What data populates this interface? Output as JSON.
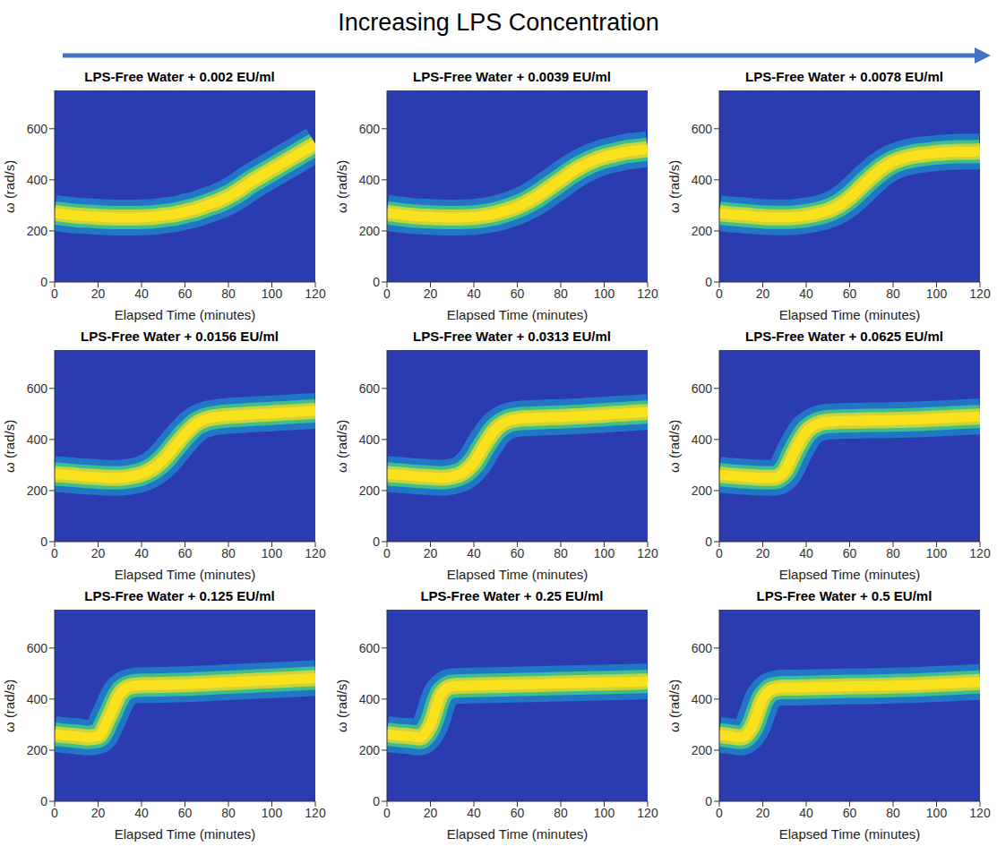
{
  "title": "Increasing LPS Concentration",
  "chart_data": [
    {
      "type": "line",
      "title": "LPS-Free Water + 0.002 EU/ml",
      "x_label": "Elapsed Time (minutes)",
      "y_label": "ω (rad/s)",
      "color": "#f9e11e",
      "x": [
        0,
        5,
        10,
        15,
        20,
        25,
        30,
        35,
        40,
        45,
        50,
        55,
        60,
        65,
        70,
        75,
        80,
        85,
        90,
        95,
        100,
        105,
        110,
        115,
        120
      ],
      "values": [
        270,
        265,
        260,
        258,
        255,
        253,
        252,
        252,
        253,
        255,
        260,
        265,
        275,
        285,
        300,
        315,
        335,
        360,
        390,
        415,
        440,
        465,
        490,
        515,
        540
      ],
      "xlim": [
        0,
        120
      ],
      "xticks": [
        0,
        20,
        40,
        60,
        80,
        100,
        120
      ],
      "ylim": [
        0,
        750
      ],
      "yticks": [
        0,
        200,
        400,
        600
      ]
    },
    {
      "type": "line",
      "title": "LPS-Free Water + 0.0039 EU/ml",
      "x_label": "Elapsed Time (minutes)",
      "y_label": "ω (rad/s)",
      "color": "#f9e11e",
      "x": [
        0,
        5,
        10,
        15,
        20,
        25,
        30,
        35,
        40,
        45,
        50,
        55,
        60,
        65,
        70,
        75,
        80,
        85,
        90,
        95,
        100,
        105,
        110,
        115,
        120
      ],
      "values": [
        270,
        265,
        260,
        257,
        255,
        253,
        252,
        253,
        255,
        260,
        268,
        280,
        295,
        315,
        340,
        370,
        400,
        430,
        455,
        475,
        490,
        500,
        510,
        515,
        520
      ],
      "xlim": [
        0,
        120
      ],
      "xticks": [
        0,
        20,
        40,
        60,
        80,
        100,
        120
      ],
      "ylim": [
        0,
        750
      ],
      "yticks": [
        0,
        200,
        400,
        600
      ]
    },
    {
      "type": "line",
      "title": "LPS-Free Water + 0.0078 EU/ml",
      "x_label": "Elapsed Time (minutes)",
      "y_label": "ω (rad/s)",
      "color": "#f9e11e",
      "x": [
        0,
        5,
        10,
        15,
        20,
        25,
        30,
        35,
        40,
        45,
        50,
        55,
        60,
        65,
        70,
        75,
        80,
        85,
        90,
        95,
        100,
        105,
        110,
        115,
        120
      ],
      "values": [
        270,
        265,
        262,
        258,
        255,
        253,
        253,
        255,
        260,
        268,
        280,
        300,
        330,
        370,
        410,
        445,
        470,
        485,
        495,
        500,
        505,
        508,
        510,
        510,
        512
      ],
      "xlim": [
        0,
        120
      ],
      "xticks": [
        0,
        20,
        40,
        60,
        80,
        100,
        120
      ],
      "ylim": [
        0,
        750
      ],
      "yticks": [
        0,
        200,
        400,
        600
      ]
    },
    {
      "type": "line",
      "title": "LPS-Free Water + 0.0156 EU/ml",
      "x_label": "Elapsed Time (minutes)",
      "y_label": "ω (rad/s)",
      "color": "#f9e11e",
      "x": [
        0,
        5,
        10,
        15,
        20,
        25,
        30,
        35,
        40,
        45,
        50,
        55,
        60,
        65,
        70,
        75,
        80,
        85,
        90,
        95,
        100,
        105,
        110,
        115,
        120
      ],
      "values": [
        265,
        262,
        258,
        255,
        252,
        250,
        250,
        255,
        265,
        285,
        320,
        370,
        420,
        460,
        480,
        488,
        492,
        495,
        498,
        500,
        502,
        505,
        507,
        510,
        512
      ],
      "xlim": [
        0,
        120
      ],
      "xticks": [
        0,
        20,
        40,
        60,
        80,
        100,
        120
      ],
      "ylim": [
        0,
        750
      ],
      "yticks": [
        0,
        200,
        400,
        600
      ]
    },
    {
      "type": "line",
      "title": "LPS-Free Water + 0.0313 EU/ml",
      "x_label": "Elapsed Time (minutes)",
      "y_label": "ω (rad/s)",
      "color": "#f9e11e",
      "x": [
        0,
        5,
        10,
        15,
        20,
        25,
        30,
        35,
        40,
        45,
        50,
        55,
        60,
        65,
        70,
        75,
        80,
        85,
        90,
        95,
        100,
        105,
        110,
        115,
        120
      ],
      "values": [
        265,
        262,
        258,
        255,
        252,
        250,
        255,
        270,
        310,
        380,
        440,
        470,
        480,
        483,
        485,
        487,
        488,
        490,
        492,
        495,
        497,
        500,
        502,
        505,
        507
      ],
      "xlim": [
        0,
        120
      ],
      "xticks": [
        0,
        20,
        40,
        60,
        80,
        100,
        120
      ],
      "ylim": [
        0,
        750
      ],
      "yticks": [
        0,
        200,
        400,
        600
      ]
    },
    {
      "type": "line",
      "title": "LPS-Free Water + 0.0625 EU/ml",
      "x_label": "Elapsed Time (minutes)",
      "y_label": "ω (rad/s)",
      "color": "#f9e11e",
      "x": [
        0,
        5,
        10,
        15,
        20,
        25,
        30,
        35,
        40,
        45,
        50,
        55,
        60,
        65,
        70,
        75,
        80,
        85,
        90,
        95,
        100,
        105,
        110,
        115,
        120
      ],
      "values": [
        262,
        258,
        255,
        252,
        250,
        250,
        275,
        360,
        430,
        460,
        470,
        472,
        473,
        474,
        475,
        475,
        476,
        477,
        478,
        480,
        482,
        484,
        486,
        488,
        490
      ],
      "xlim": [
        0,
        120
      ],
      "xticks": [
        0,
        20,
        40,
        60,
        80,
        100,
        120
      ],
      "ylim": [
        0,
        750
      ],
      "yticks": [
        0,
        200,
        400,
        600
      ]
    },
    {
      "type": "line",
      "title": "LPS-Free Water + 0.125 EU/ml",
      "x_label": "Elapsed Time (minutes)",
      "y_label": "ω (rad/s)",
      "color": "#f9e11e",
      "x": [
        0,
        5,
        10,
        15,
        20,
        25,
        30,
        35,
        40,
        45,
        50,
        55,
        60,
        65,
        70,
        75,
        80,
        85,
        90,
        95,
        100,
        105,
        110,
        115,
        120
      ],
      "values": [
        262,
        258,
        255,
        250,
        255,
        330,
        420,
        450,
        455,
        455,
        456,
        457,
        458,
        460,
        462,
        464,
        466,
        468,
        470,
        472,
        474,
        476,
        478,
        480,
        482
      ],
      "xlim": [
        0,
        120
      ],
      "xticks": [
        0,
        20,
        40,
        60,
        80,
        100,
        120
      ],
      "ylim": [
        0,
        750
      ],
      "yticks": [
        0,
        200,
        400,
        600
      ]
    },
    {
      "type": "line",
      "title": "LPS-Free Water + 0.25 EU/ml",
      "x_label": "Elapsed Time (minutes)",
      "y_label": "ω (rad/s)",
      "color": "#f9e11e",
      "x": [
        0,
        5,
        10,
        15,
        20,
        25,
        30,
        35,
        40,
        45,
        50,
        55,
        60,
        65,
        70,
        75,
        80,
        85,
        90,
        95,
        100,
        105,
        110,
        115,
        120
      ],
      "values": [
        262,
        258,
        255,
        250,
        300,
        420,
        450,
        452,
        453,
        454,
        455,
        456,
        457,
        458,
        459,
        460,
        461,
        462,
        463,
        464,
        465,
        466,
        467,
        468,
        470
      ],
      "xlim": [
        0,
        120
      ],
      "xticks": [
        0,
        20,
        40,
        60,
        80,
        100,
        120
      ],
      "ylim": [
        0,
        750
      ],
      "yticks": [
        0,
        200,
        400,
        600
      ]
    },
    {
      "type": "line",
      "title": "LPS-Free Water + 0.5 EU/ml",
      "x_label": "Elapsed Time (minutes)",
      "y_label": "ω (rad/s)",
      "color": "#f9e11e",
      "x": [
        0,
        5,
        10,
        15,
        20,
        25,
        30,
        35,
        40,
        45,
        50,
        55,
        60,
        65,
        70,
        75,
        80,
        85,
        90,
        95,
        100,
        105,
        110,
        115,
        120
      ],
      "values": [
        260,
        255,
        250,
        290,
        400,
        440,
        445,
        445,
        446,
        447,
        448,
        449,
        450,
        450,
        451,
        452,
        453,
        454,
        455,
        457,
        459,
        461,
        463,
        465,
        467
      ],
      "xlim": [
        0,
        120
      ],
      "xticks": [
        0,
        20,
        40,
        60,
        80,
        100,
        120
      ],
      "ylim": [
        0,
        750
      ],
      "yticks": [
        0,
        200,
        400,
        600
      ]
    }
  ]
}
